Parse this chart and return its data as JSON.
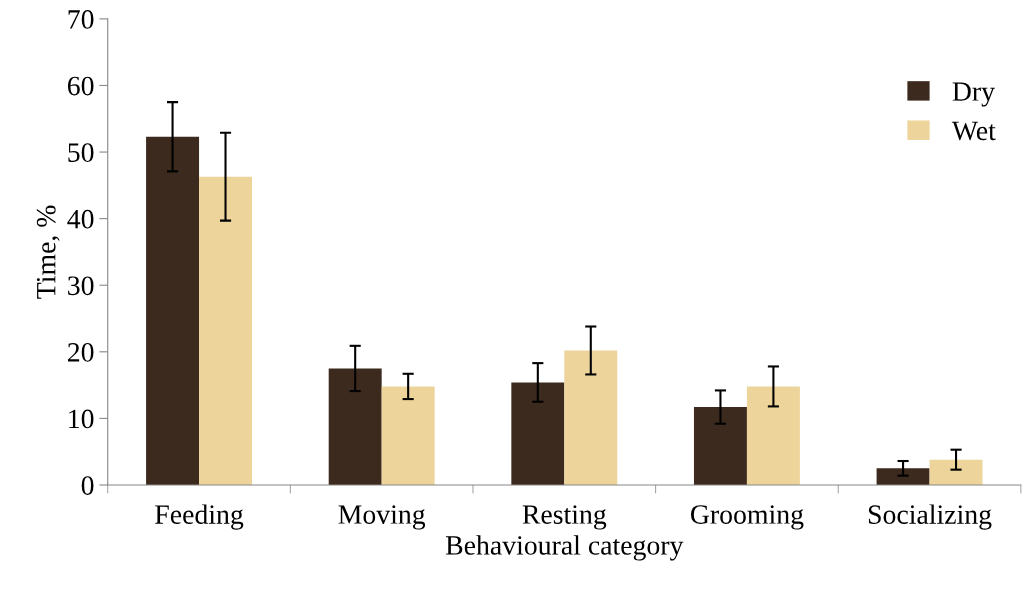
{
  "chart_data": {
    "type": "bar",
    "xlabel": "Behavioural category",
    "ylabel": "Time, %",
    "categories": [
      "Feeding",
      "Moving",
      "Resting",
      "Grooming",
      "Socializing"
    ],
    "series": [
      {
        "name": "Dry",
        "color": "#3d2a1e",
        "values": [
          52.3,
          17.5,
          15.4,
          11.7,
          2.5
        ],
        "errors": [
          5.2,
          3.4,
          2.9,
          2.5,
          1.1
        ]
      },
      {
        "name": "Wet",
        "color": "#ecd49a",
        "values": [
          46.3,
          14.8,
          20.2,
          14.8,
          3.8
        ],
        "errors": [
          6.6,
          1.9,
          3.6,
          3.0,
          1.5
        ]
      }
    ],
    "ylim": [
      0,
      70
    ],
    "yticks": [
      0,
      10,
      20,
      30,
      40,
      50,
      60,
      70
    ],
    "grid": false,
    "legend": "top right"
  }
}
